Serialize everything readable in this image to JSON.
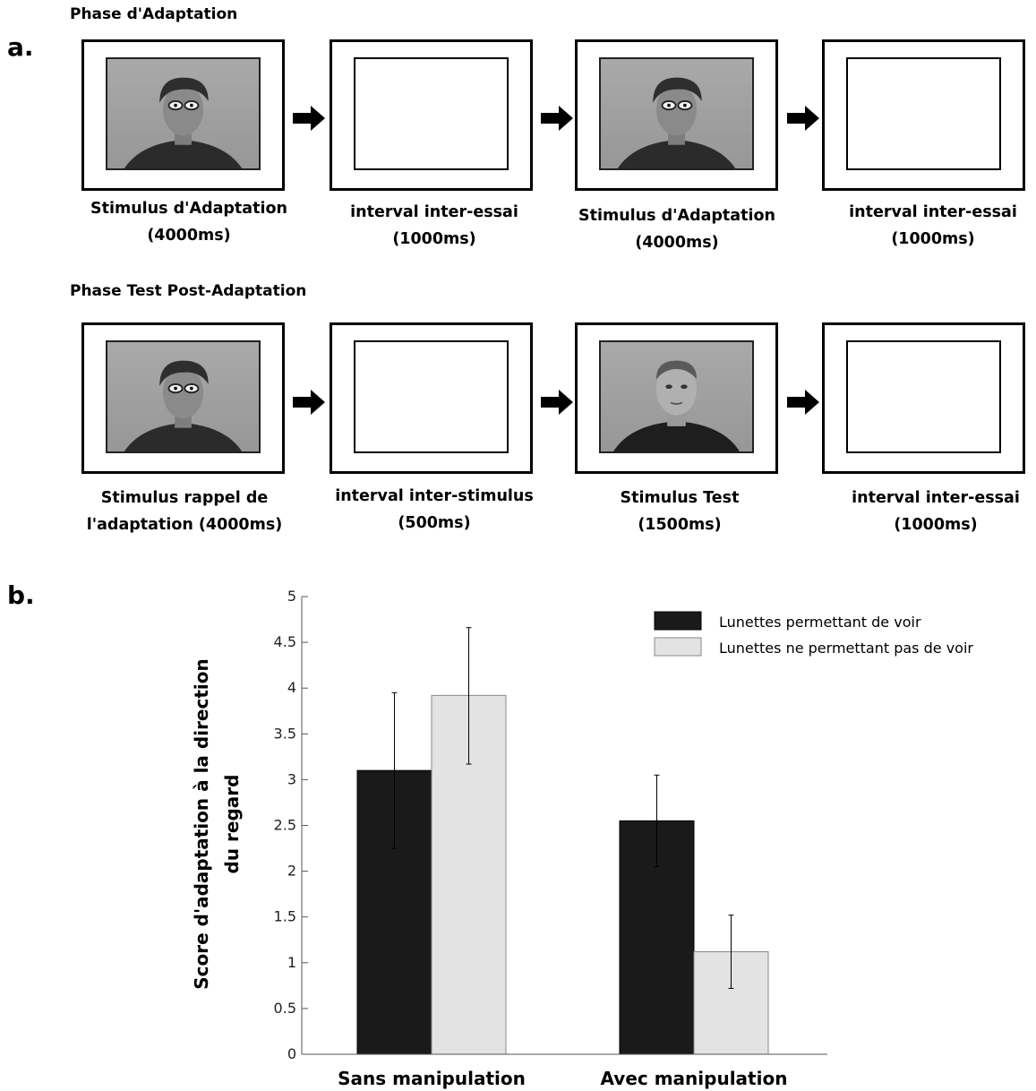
{
  "panel_a": {
    "letter": "a.",
    "phase_adaptation": {
      "title": "Phase d'Adaptation",
      "steps": [
        {
          "line1": "Stimulus d'Adaptation",
          "line2": "(4000ms)"
        },
        {
          "line1": "interval inter-essai",
          "line2": "(1000ms)"
        },
        {
          "line1": "Stimulus d'Adaptation",
          "line2": "(4000ms)"
        },
        {
          "line1": "interval inter-essai",
          "line2": "(1000ms)"
        }
      ]
    },
    "phase_test": {
      "title": "Phase Test Post-Adaptation",
      "steps": [
        {
          "line1": "Stimulus rappel de",
          "line2": "l'adaptation (4000ms)"
        },
        {
          "line1": "interval inter-stimulus",
          "line2": "(500ms)"
        },
        {
          "line1": "Stimulus Test",
          "line2": "(1500ms)"
        },
        {
          "line1": "interval inter-essai",
          "line2": "(1000ms)"
        }
      ]
    }
  },
  "panel_b": {
    "letter": "b."
  },
  "chart_data": {
    "type": "bar",
    "title": "",
    "ylabel_line1": "Score d'adaptation  à la direction",
    "ylabel_line2": "du regard",
    "xlabel": "",
    "ylim": [
      0,
      5
    ],
    "y_ticks": [
      "0",
      "0.5",
      "1",
      "1.5",
      "2",
      "2.5",
      "3",
      "3.5",
      "4",
      "4.5",
      "5"
    ],
    "categories": [
      "Sans manipulation",
      "Avec manipulation"
    ],
    "series": [
      {
        "name": "Lunettes permettant de voir",
        "color": "#1a1a1a",
        "values": [
          3.1,
          2.55
        ],
        "err_low": [
          2.25,
          2.05
        ],
        "err_high": [
          3.95,
          3.05
        ]
      },
      {
        "name": "Lunettes ne permettant pas de voir",
        "color": "#e3e3e3",
        "values": [
          3.92,
          1.12
        ],
        "err_low": [
          3.17,
          0.72
        ],
        "err_high": [
          4.66,
          1.52
        ]
      }
    ],
    "legend_position": "top-right",
    "grid": false
  }
}
